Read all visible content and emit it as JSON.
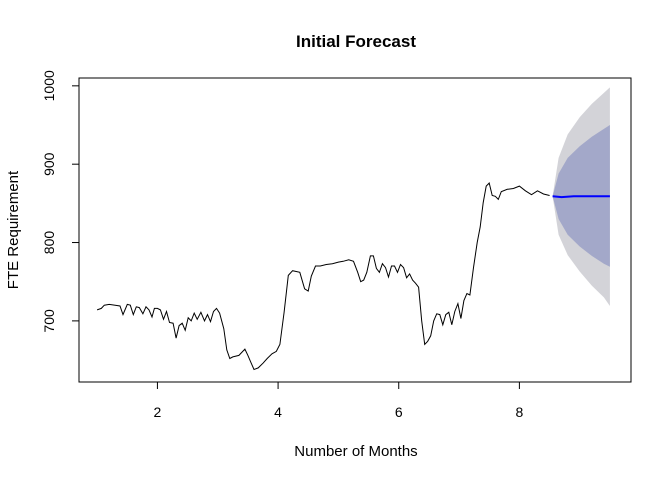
{
  "chart_data": {
    "type": "line",
    "title": "Initial Forecast",
    "xlabel": "Number of Months",
    "ylabel": "FTE Requirement",
    "xlim": [
      0.7,
      9.85
    ],
    "ylim": [
      622,
      1010
    ],
    "x_ticks": [
      2,
      4,
      6,
      8
    ],
    "y_ticks": [
      700,
      800,
      900,
      1000
    ],
    "grid": false,
    "colors": {
      "history": "#000000",
      "forecast": "#0000ff",
      "band80": "#a3a8c9",
      "band95": "#d3d3d8",
      "axis": "#000000"
    },
    "series": [
      {
        "role": "history",
        "points": [
          [
            1.0,
            714
          ],
          [
            1.07,
            716
          ],
          [
            1.12,
            720
          ],
          [
            1.2,
            721
          ],
          [
            1.3,
            720
          ],
          [
            1.38,
            719
          ],
          [
            1.43,
            708
          ],
          [
            1.5,
            721
          ],
          [
            1.55,
            720
          ],
          [
            1.6,
            708
          ],
          [
            1.65,
            718
          ],
          [
            1.7,
            717
          ],
          [
            1.76,
            709
          ],
          [
            1.81,
            718
          ],
          [
            1.86,
            714
          ],
          [
            1.91,
            705
          ],
          [
            1.95,
            716
          ],
          [
            2.0,
            716
          ],
          [
            2.05,
            714
          ],
          [
            2.1,
            702
          ],
          [
            2.15,
            712
          ],
          [
            2.2,
            698
          ],
          [
            2.26,
            697
          ],
          [
            2.31,
            678
          ],
          [
            2.36,
            694
          ],
          [
            2.41,
            697
          ],
          [
            2.46,
            688
          ],
          [
            2.51,
            704
          ],
          [
            2.56,
            700
          ],
          [
            2.61,
            710
          ],
          [
            2.66,
            702
          ],
          [
            2.72,
            711
          ],
          [
            2.78,
            700
          ],
          [
            2.83,
            708
          ],
          [
            2.88,
            699
          ],
          [
            2.93,
            712
          ],
          [
            2.98,
            716
          ],
          [
            3.03,
            710
          ],
          [
            3.1,
            690
          ],
          [
            3.15,
            663
          ],
          [
            3.2,
            652
          ],
          [
            3.25,
            654
          ],
          [
            3.35,
            656
          ],
          [
            3.45,
            664
          ],
          [
            3.5,
            656
          ],
          [
            3.55,
            647
          ],
          [
            3.6,
            638
          ],
          [
            3.67,
            640
          ],
          [
            3.75,
            646
          ],
          [
            3.82,
            652
          ],
          [
            3.9,
            658
          ],
          [
            3.97,
            661
          ],
          [
            4.03,
            670
          ],
          [
            4.1,
            711
          ],
          [
            4.17,
            758
          ],
          [
            4.24,
            764
          ],
          [
            4.3,
            763
          ],
          [
            4.36,
            762
          ],
          [
            4.44,
            741
          ],
          [
            4.5,
            738
          ],
          [
            4.55,
            757
          ],
          [
            4.62,
            770
          ],
          [
            4.7,
            770
          ],
          [
            4.8,
            772
          ],
          [
            4.9,
            773
          ],
          [
            5.0,
            775
          ],
          [
            5.08,
            776
          ],
          [
            5.17,
            778
          ],
          [
            5.25,
            776
          ],
          [
            5.32,
            762
          ],
          [
            5.37,
            750
          ],
          [
            5.42,
            752
          ],
          [
            5.47,
            762
          ],
          [
            5.53,
            783
          ],
          [
            5.58,
            783
          ],
          [
            5.63,
            767
          ],
          [
            5.68,
            762
          ],
          [
            5.73,
            773
          ],
          [
            5.78,
            768
          ],
          [
            5.83,
            756
          ],
          [
            5.88,
            770
          ],
          [
            5.93,
            770
          ],
          [
            5.98,
            762
          ],
          [
            6.03,
            772
          ],
          [
            6.08,
            768
          ],
          [
            6.13,
            755
          ],
          [
            6.18,
            760
          ],
          [
            6.23,
            752
          ],
          [
            6.28,
            748
          ],
          [
            6.33,
            743
          ],
          [
            6.38,
            700
          ],
          [
            6.43,
            670
          ],
          [
            6.48,
            674
          ],
          [
            6.53,
            681
          ],
          [
            6.58,
            700
          ],
          [
            6.63,
            709
          ],
          [
            6.68,
            708
          ],
          [
            6.73,
            695
          ],
          [
            6.78,
            708
          ],
          [
            6.83,
            711
          ],
          [
            6.88,
            695
          ],
          [
            6.93,
            712
          ],
          [
            6.98,
            722
          ],
          [
            7.03,
            703
          ],
          [
            7.08,
            726
          ],
          [
            7.13,
            735
          ],
          [
            7.18,
            733
          ],
          [
            7.24,
            768
          ],
          [
            7.3,
            800
          ],
          [
            7.35,
            820
          ],
          [
            7.4,
            851
          ],
          [
            7.45,
            872
          ],
          [
            7.5,
            876
          ],
          [
            7.55,
            860
          ],
          [
            7.6,
            859
          ],
          [
            7.65,
            855
          ],
          [
            7.7,
            865
          ],
          [
            7.8,
            868
          ],
          [
            7.9,
            869
          ],
          [
            8.0,
            872
          ],
          [
            8.1,
            866
          ],
          [
            8.2,
            861
          ],
          [
            8.3,
            866
          ],
          [
            8.4,
            862
          ],
          [
            8.5,
            860
          ]
        ]
      },
      {
        "role": "forecast",
        "points": [
          [
            8.55,
            859
          ],
          [
            8.7,
            858
          ],
          [
            8.9,
            859
          ],
          [
            9.2,
            859
          ],
          [
            9.5,
            859
          ]
        ]
      },
      {
        "role": "interval80",
        "x": [
          8.55,
          8.65,
          8.8,
          9.0,
          9.2,
          9.4,
          9.5
        ],
        "lower": [
          859,
          830,
          810,
          795,
          783,
          773,
          769
        ],
        "upper": [
          859,
          888,
          908,
          923,
          935,
          945,
          950
        ]
      },
      {
        "role": "interval95",
        "x": [
          8.55,
          8.65,
          8.8,
          9.0,
          9.2,
          9.4,
          9.5
        ],
        "lower": [
          859,
          810,
          784,
          763,
          745,
          730,
          719
        ],
        "upper": [
          859,
          908,
          938,
          960,
          977,
          991,
          998
        ]
      }
    ]
  }
}
